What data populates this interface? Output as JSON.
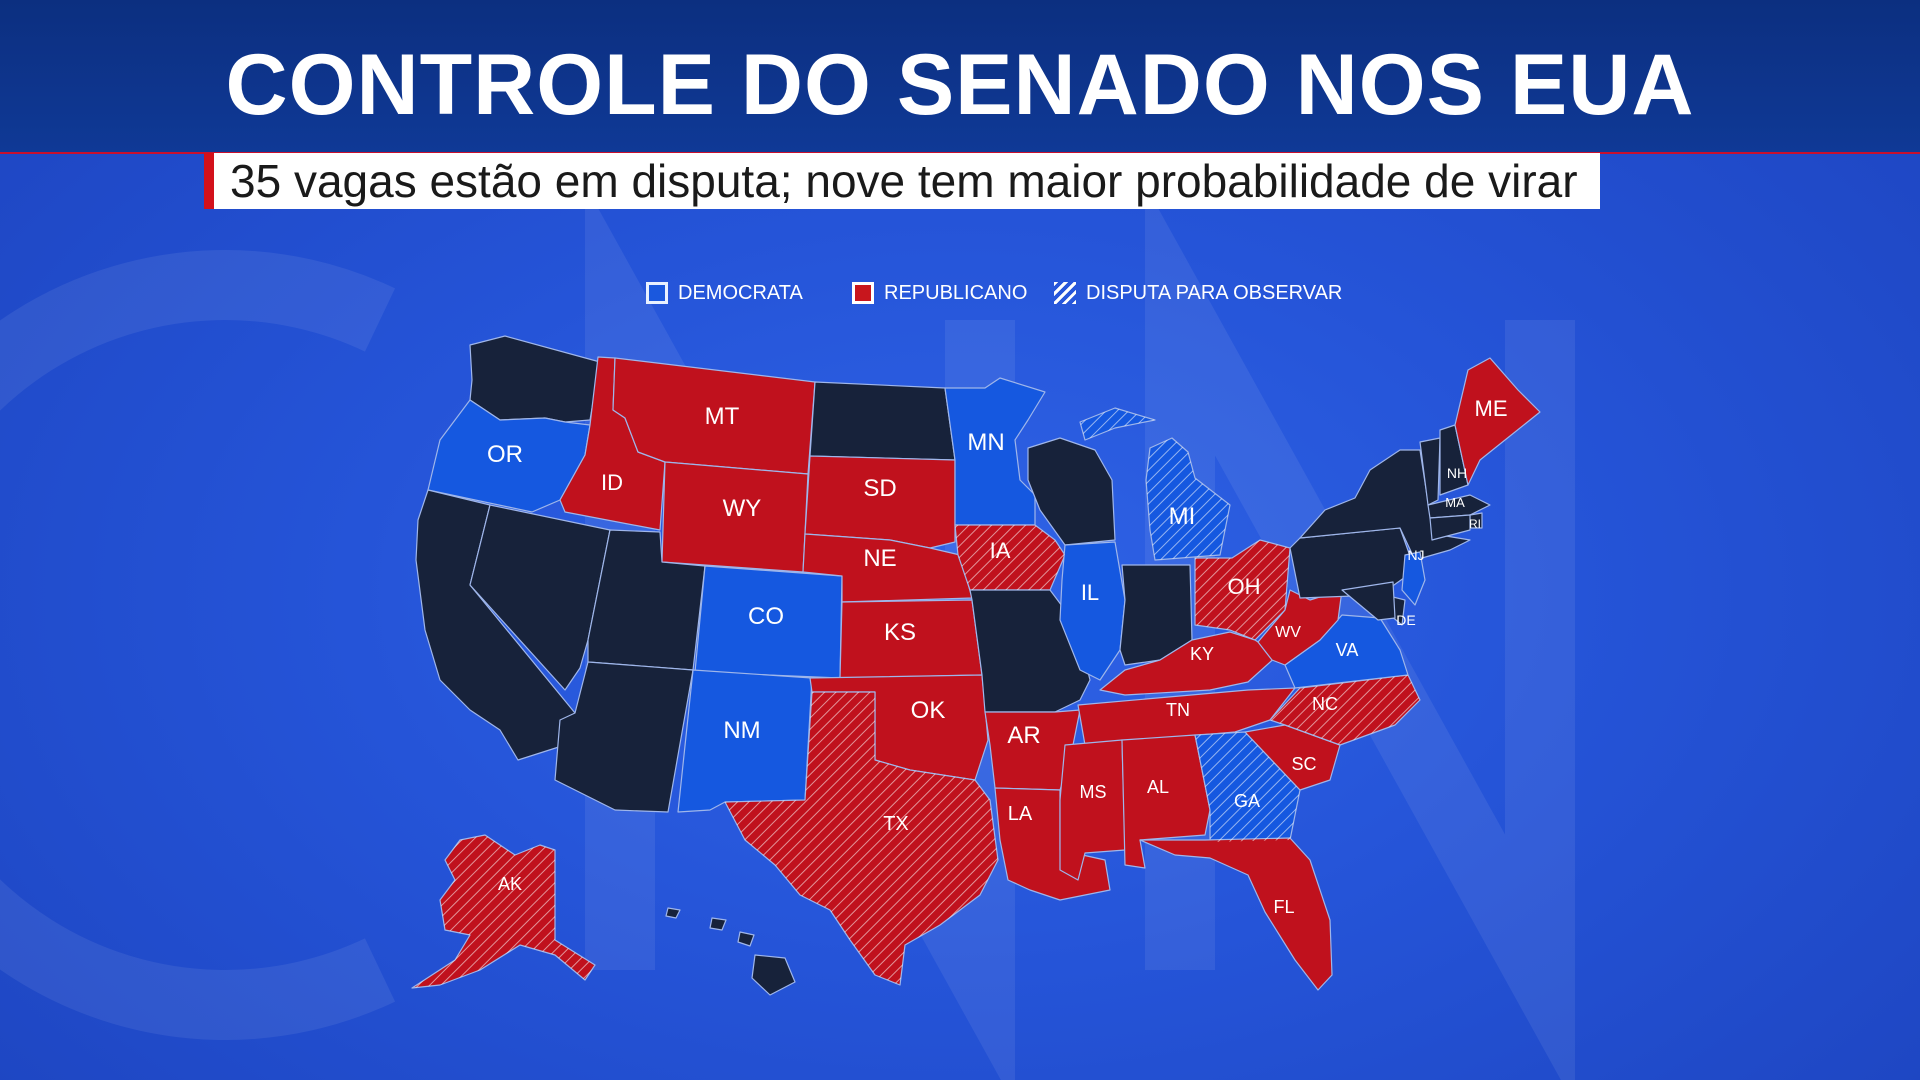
{
  "title": "CONTROLE DO SENADO NOS EUA",
  "subtitle": "35 vagas estão em disputa; nove tem maior probabilidade de virar",
  "colors": {
    "democrat": "#1558e0",
    "republican": "#c0111d",
    "no_race": "#17223a",
    "background": "#2554d8",
    "accent_bar": "#d3111b"
  },
  "legend": [
    {
      "label": "DEMOCRATA",
      "swatch": "democrat"
    },
    {
      "label": "REPUBLICANO",
      "swatch": "republican"
    },
    {
      "label": "DISPUTA PARA OBSERVAR",
      "swatch": "hatch"
    }
  ],
  "states": {
    "WA": {
      "status": "none"
    },
    "OR": {
      "label": "OR",
      "status": "democrat"
    },
    "CA": {
      "status": "none"
    },
    "NV": {
      "status": "none"
    },
    "ID": {
      "label": "ID",
      "status": "republican"
    },
    "MT": {
      "label": "MT",
      "status": "republican"
    },
    "WY": {
      "label": "WY",
      "status": "republican"
    },
    "UT": {
      "status": "none"
    },
    "AZ": {
      "status": "none"
    },
    "CO": {
      "label": "CO",
      "status": "democrat"
    },
    "NM": {
      "label": "NM",
      "status": "democrat"
    },
    "ND": {
      "status": "none"
    },
    "SD": {
      "label": "SD",
      "status": "republican"
    },
    "NE": {
      "label": "NE",
      "status": "republican"
    },
    "KS": {
      "label": "KS",
      "status": "republican"
    },
    "OK": {
      "label": "OK",
      "status": "republican"
    },
    "TX": {
      "label": "TX",
      "status": "republican",
      "watch": true
    },
    "MN": {
      "label": "MN",
      "status": "democrat"
    },
    "IA": {
      "label": "IA",
      "status": "republican",
      "watch": true
    },
    "MO": {
      "status": "none"
    },
    "AR": {
      "label": "AR",
      "status": "republican"
    },
    "LA": {
      "label": "LA",
      "status": "republican"
    },
    "WI": {
      "status": "none"
    },
    "IL": {
      "label": "IL",
      "status": "democrat"
    },
    "MI": {
      "label": "MI",
      "status": "democrat",
      "watch": true
    },
    "IN": {
      "status": "none"
    },
    "OH": {
      "label": "OH",
      "status": "republican",
      "watch": true
    },
    "KY": {
      "label": "KY",
      "status": "republican"
    },
    "TN": {
      "label": "TN",
      "status": "republican"
    },
    "MS": {
      "label": "MS",
      "status": "republican"
    },
    "AL": {
      "label": "AL",
      "status": "republican"
    },
    "GA": {
      "label": "GA",
      "status": "democrat",
      "watch": true
    },
    "FL": {
      "label": "FL",
      "status": "republican"
    },
    "SC": {
      "label": "SC",
      "status": "republican"
    },
    "NC": {
      "label": "NC",
      "status": "republican",
      "watch": true
    },
    "VA": {
      "label": "VA",
      "status": "democrat"
    },
    "WV": {
      "label": "WV",
      "status": "republican"
    },
    "PA": {
      "status": "none"
    },
    "NY": {
      "status": "none"
    },
    "NJ": {
      "label": "NJ",
      "status": "democrat"
    },
    "DE": {
      "label": "DE",
      "status": "none"
    },
    "MD": {
      "status": "none"
    },
    "VT": {
      "status": "none"
    },
    "NH": {
      "label": "NH",
      "status": "none"
    },
    "MA": {
      "label": "MA",
      "status": "none"
    },
    "RI": {
      "label": "RI",
      "status": "none"
    },
    "CT": {
      "status": "none"
    },
    "ME": {
      "label": "ME",
      "status": "republican"
    },
    "AK": {
      "label": "AK",
      "status": "republican",
      "watch": true
    },
    "HI": {
      "status": "none"
    }
  }
}
